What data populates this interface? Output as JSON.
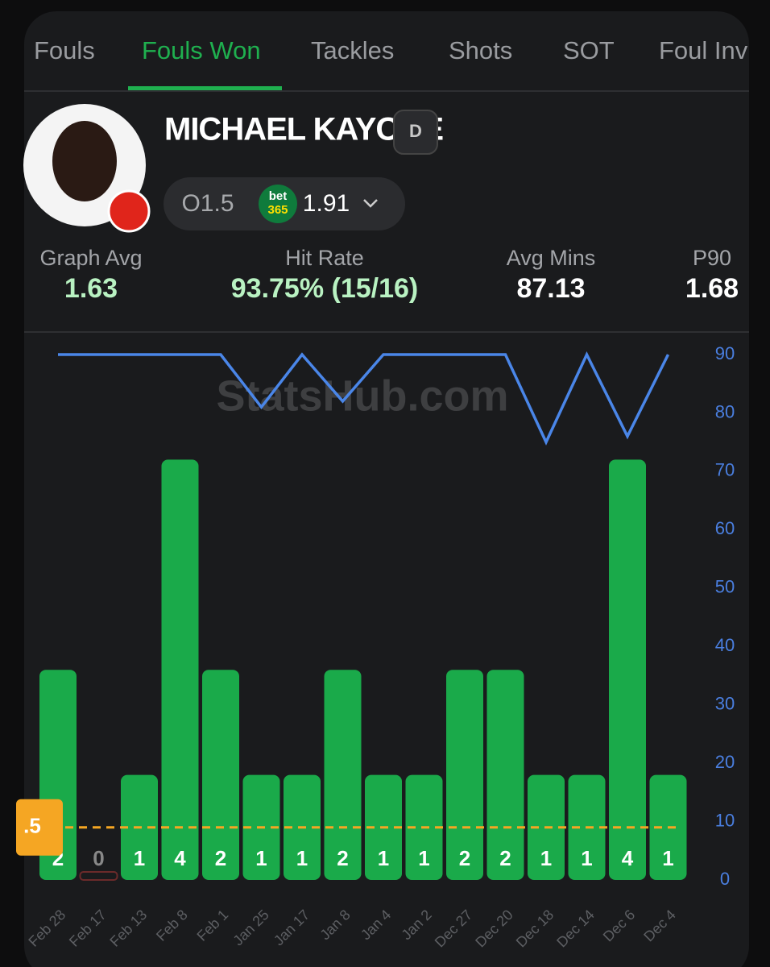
{
  "tabs": [
    "Fouls",
    "Fouls Won",
    "Tackles",
    "Shots",
    "SOT",
    "Foul Inv"
  ],
  "player": {
    "name": "MICHAEL KAYODE",
    "position": "D",
    "line": "O1.5",
    "bookmaker": [
      "bet",
      "365"
    ],
    "odds": "1.91"
  },
  "stats": [
    {
      "label": "Graph Avg",
      "value": "1.63"
    },
    {
      "label": "Hit Rate",
      "value": "93.75% (15/16)"
    },
    {
      "label": "Avg Mins",
      "value": "87.13"
    },
    {
      "label": "P90",
      "value": "1.68"
    }
  ],
  "chart_data": {
    "type": "bar",
    "watermark": "StatsHub.com",
    "categories": [
      "Feb 28",
      "Feb 17",
      "Feb 13",
      "Feb 8",
      "Feb 1",
      "Jan 25",
      "Jan 17",
      "Jan 8",
      "Jan 4",
      "Jan 2",
      "Dec 27",
      "Dec 20",
      "Dec 18",
      "Dec 14",
      "Dec 6",
      "Dec 4"
    ],
    "series": [
      {
        "color": "#1aaa4a",
        "values": [
          2,
          0,
          1,
          4,
          2,
          1,
          1,
          2,
          1,
          1,
          2,
          2,
          1,
          1,
          4,
          1
        ]
      },
      {
        "color": "#4a86e8",
        "axis": "y2",
        "values": [
          90,
          90,
          90,
          90,
          90,
          81,
          90,
          82,
          90,
          90,
          90,
          90,
          75,
          90,
          76,
          90
        ]
      }
    ],
    "ylim": [
      0,
      5
    ],
    "y2lim": [
      0,
      90
    ],
    "y2ticks": [
      0,
      10,
      20,
      30,
      40,
      50,
      60,
      70,
      80,
      90
    ],
    "threshold": {
      "value": 0.5,
      "label": ".5"
    }
  }
}
